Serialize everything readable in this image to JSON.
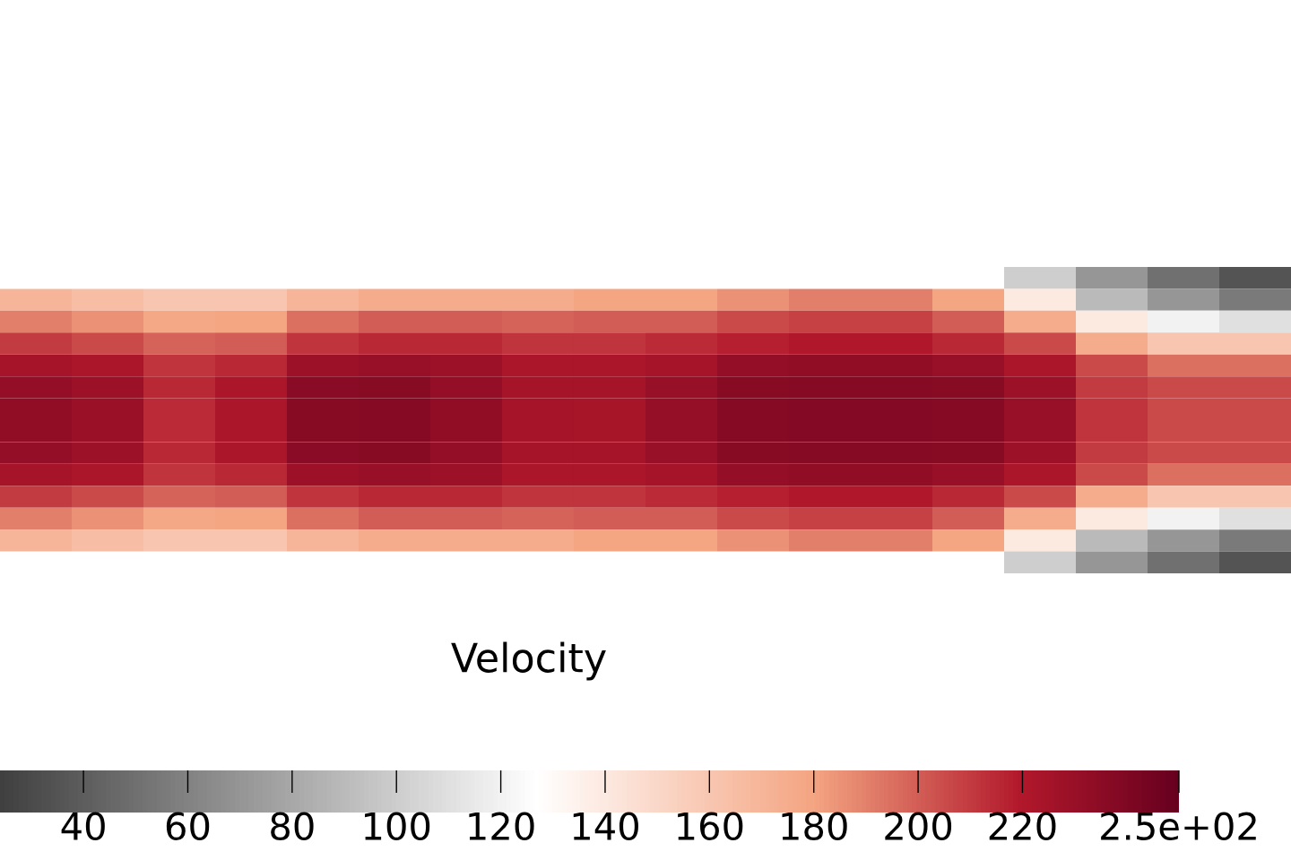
{
  "chart_data": {
    "type": "heatmap",
    "clabel": "Velocity",
    "categories": [
      null,
      null,
      null,
      null,
      null,
      null,
      null,
      null,
      null,
      null,
      null,
      null,
      null,
      null,
      null,
      null,
      null,
      null
    ],
    "y_categories": [
      null,
      null,
      null,
      null,
      null,
      null,
      null,
      null,
      null,
      null,
      null,
      null,
      null,
      null
    ],
    "cells": [
      [
        null,
        null,
        null,
        null,
        null,
        null,
        null,
        null,
        null,
        null,
        null,
        null,
        null,
        null,
        100,
        70,
        50,
        35
      ],
      [
        170,
        165,
        160,
        160,
        170,
        175,
        175,
        175,
        180,
        180,
        185,
        190,
        190,
        180,
        140,
        90,
        70,
        55
      ],
      [
        190,
        185,
        178,
        180,
        195,
        200,
        200,
        198,
        200,
        200,
        205,
        208,
        208,
        200,
        175,
        140,
        120,
        110
      ],
      [
        210,
        205,
        198,
        200,
        212,
        215,
        215,
        212,
        212,
        214,
        218,
        220,
        220,
        215,
        205,
        175,
        160,
        160
      ],
      [
        225,
        222,
        212,
        215,
        228,
        230,
        228,
        222,
        222,
        225,
        232,
        233,
        233,
        230,
        222,
        205,
        195,
        195
      ],
      [
        232,
        228,
        215,
        222,
        235,
        236,
        232,
        225,
        225,
        230,
        236,
        237,
        237,
        236,
        228,
        210,
        205,
        205
      ],
      [
        233,
        229,
        214,
        222,
        236,
        237,
        233,
        225,
        224,
        231,
        237,
        238,
        238,
        237,
        230,
        212,
        205,
        205
      ],
      [
        233,
        229,
        214,
        222,
        236,
        237,
        233,
        225,
        224,
        231,
        237,
        238,
        238,
        237,
        230,
        212,
        205,
        205
      ],
      [
        232,
        228,
        215,
        222,
        235,
        236,
        232,
        225,
        225,
        230,
        236,
        237,
        237,
        236,
        228,
        210,
        205,
        205
      ],
      [
        225,
        222,
        212,
        215,
        228,
        230,
        228,
        222,
        222,
        225,
        232,
        233,
        233,
        230,
        222,
        205,
        195,
        195
      ],
      [
        210,
        205,
        198,
        200,
        212,
        215,
        215,
        212,
        212,
        214,
        218,
        220,
        220,
        215,
        205,
        175,
        160,
        160
      ],
      [
        190,
        185,
        178,
        180,
        195,
        200,
        200,
        198,
        200,
        200,
        205,
        208,
        208,
        200,
        175,
        140,
        120,
        110
      ],
      [
        170,
        165,
        160,
        160,
        170,
        175,
        175,
        175,
        180,
        180,
        185,
        190,
        190,
        180,
        140,
        90,
        70,
        55
      ],
      [
        null,
        null,
        null,
        null,
        null,
        null,
        null,
        null,
        null,
        null,
        null,
        null,
        null,
        null,
        100,
        70,
        50,
        35
      ]
    ],
    "clim": [
      24,
      250
    ],
    "cticks": [
      40,
      60,
      80,
      100,
      120,
      140,
      160,
      180,
      200,
      220,
      {
        "value": 250,
        "label": "2.5e+02"
      }
    ],
    "tick_labels": false
  }
}
